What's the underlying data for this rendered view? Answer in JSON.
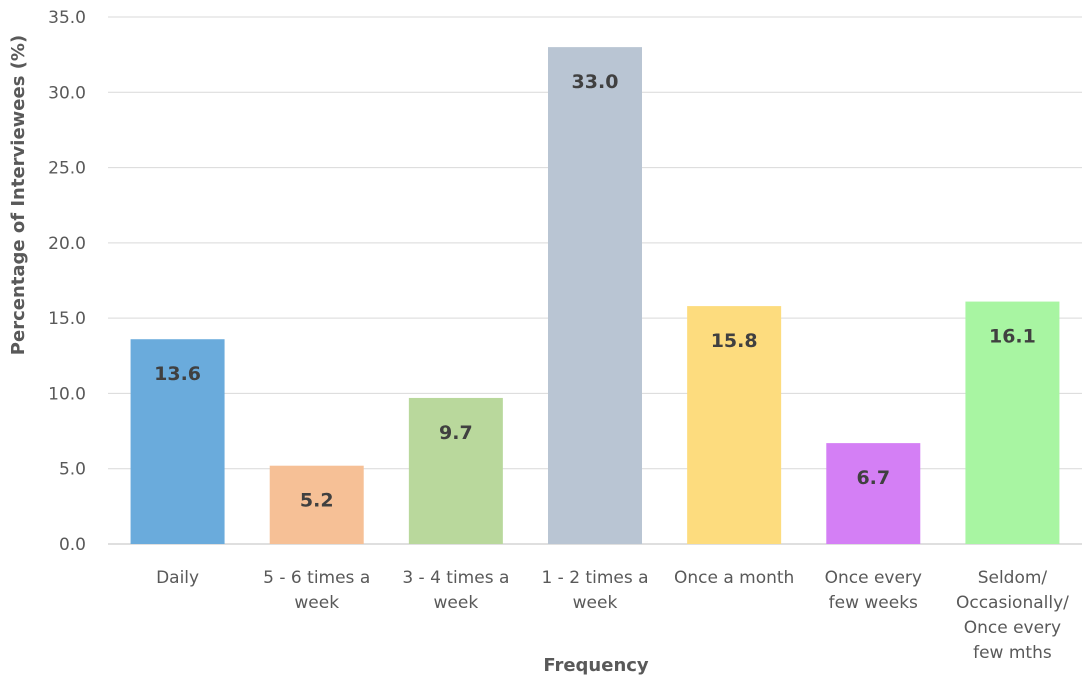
{
  "chart_data": {
    "type": "bar",
    "title": "",
    "xlabel": "Frequency",
    "ylabel": "Percentage of Interviewees (%)",
    "ylim": [
      0,
      35
    ],
    "yticks": [
      "0.0",
      "5.0",
      "10.0",
      "15.0",
      "20.0",
      "25.0",
      "30.0",
      "35.0"
    ],
    "grid": true,
    "legend": "none",
    "categories": [
      [
        "Daily"
      ],
      [
        "5 - 6 times a",
        "week"
      ],
      [
        "3 - 4 times a",
        "week"
      ],
      [
        "1 - 2 times a",
        "week"
      ],
      [
        "Once a month"
      ],
      [
        "Once every",
        "few weeks"
      ],
      [
        "Seldom/",
        "Occasionally/",
        "Once every",
        "few mths"
      ]
    ],
    "values": [
      13.6,
      5.2,
      9.7,
      33.0,
      15.8,
      6.7,
      16.1
    ],
    "value_labels": [
      "13.6",
      "5.2",
      "9.7",
      "33.0",
      "15.8",
      "6.7",
      "16.1"
    ],
    "colors": [
      "#6aabdc",
      "#f6c096",
      "#b9d89c",
      "#b9c5d3",
      "#fddc7e",
      "#d47ff5",
      "#a8f5a2"
    ]
  }
}
